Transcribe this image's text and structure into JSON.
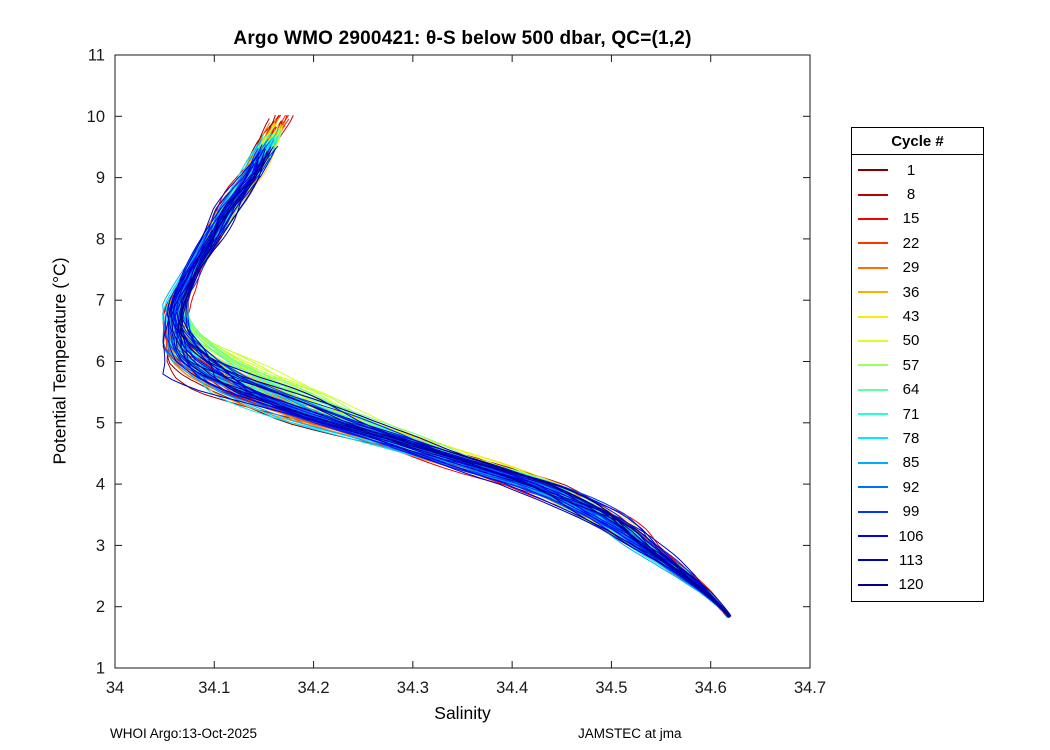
{
  "figure": {
    "footer_left": "WHOI Argo:13-Oct-2025",
    "footer_right": "JAMSTEC at jma"
  },
  "chart_data": {
    "type": "line",
    "title": "Argo WMO 2900421: θ-S below 500 dbar,  QC=(1,2)",
    "xlabel": "Salinity",
    "ylabel": "Potential Temperature (°C)",
    "xlim": [
      34,
      34.7
    ],
    "ylim": [
      1,
      11
    ],
    "xticks": [
      "34",
      "34.1",
      "34.2",
      "34.3",
      "34.4",
      "34.5",
      "34.6",
      "34.7"
    ],
    "yticks": [
      "1",
      "2",
      "3",
      "4",
      "5",
      "6",
      "7",
      "8",
      "9",
      "10",
      "11"
    ],
    "grid": false,
    "legend_title": "Cycle #",
    "legend_position": "right-outside",
    "num_profiles": 120,
    "series": [
      {
        "cycle": 1,
        "color": "#800000"
      },
      {
        "cycle": 8,
        "color": "#BC0000"
      },
      {
        "cycle": 15,
        "color": "#F70000"
      },
      {
        "cycle": 22,
        "color": "#FF3400"
      },
      {
        "cycle": 29,
        "color": "#FF7000"
      },
      {
        "cycle": 36,
        "color": "#FFAC00"
      },
      {
        "cycle": 43,
        "color": "#FFE900"
      },
      {
        "cycle": 50,
        "color": "#D9FF25"
      },
      {
        "cycle": 57,
        "color": "#9EFF61"
      },
      {
        "cycle": 64,
        "color": "#61FF9E"
      },
      {
        "cycle": 71,
        "color": "#25FFD9"
      },
      {
        "cycle": 78,
        "color": "#00E9FF"
      },
      {
        "cycle": 85,
        "color": "#00ACFF"
      },
      {
        "cycle": 92,
        "color": "#0070FF"
      },
      {
        "cycle": 99,
        "color": "#0034FF"
      },
      {
        "cycle": 106,
        "color": "#0000F7"
      },
      {
        "cycle": 113,
        "color": "#0000BC"
      },
      {
        "cycle": 120,
        "color": "#000080"
      }
    ],
    "base_profile": {
      "theta": [
        1.85,
        2.0,
        2.25,
        2.5,
        2.75,
        3.0,
        3.25,
        3.5,
        3.75,
        4.0,
        4.25,
        4.5,
        4.75,
        5.0,
        5.25,
        5.5,
        5.75,
        6.0,
        6.25,
        6.5,
        6.75,
        7.0,
        7.5,
        8.0,
        8.5,
        9.0,
        9.5,
        10.0
      ],
      "salinity": [
        34.618,
        34.61,
        34.594,
        34.575,
        34.553,
        34.53,
        34.51,
        34.485,
        34.455,
        34.42,
        34.37,
        34.32,
        34.27,
        34.215,
        34.17,
        34.13,
        34.1,
        34.08,
        34.068,
        34.062,
        34.06,
        34.063,
        34.077,
        34.096,
        34.113,
        34.135,
        34.152,
        34.17
      ]
    },
    "spread_envelope": {
      "theta": [
        1.85,
        2.0,
        2.3,
        2.7,
        3.0,
        3.5,
        4.0,
        4.5,
        5.0,
        5.5,
        6.0,
        6.5,
        7.0,
        7.5,
        8.5,
        10.0
      ],
      "salinity_halfwidth": [
        0.002,
        0.003,
        0.007,
        0.013,
        0.018,
        0.028,
        0.033,
        0.036,
        0.045,
        0.048,
        0.035,
        0.018,
        0.012,
        0.01,
        0.013,
        0.013
      ]
    },
    "axis_color": "#1a1a1a"
  }
}
